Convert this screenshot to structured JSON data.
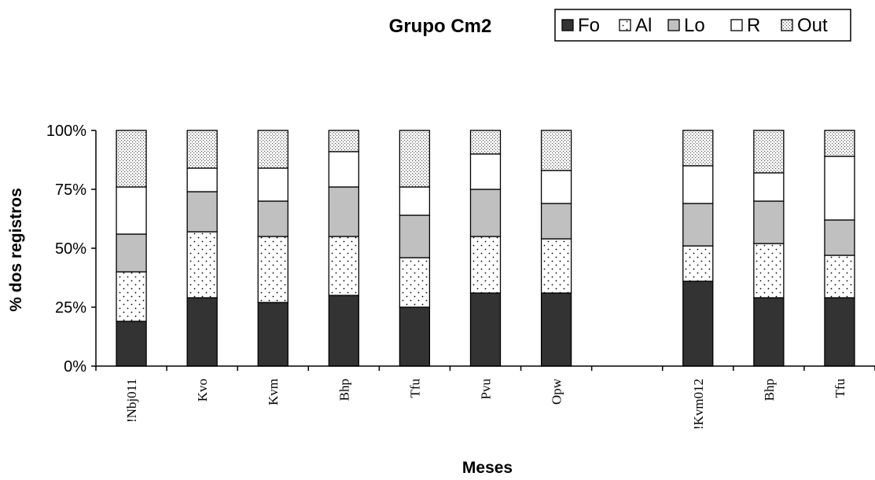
{
  "chart_data": {
    "type": "bar",
    "stacked": true,
    "percent": true,
    "title": "Grupo Cm2",
    "xlabel": "Meses",
    "ylabel": "% dos registros",
    "ylim": [
      0,
      100
    ],
    "yticks": [
      "0%",
      "25%",
      "50%",
      "75%",
      "100%"
    ],
    "ytick_values": [
      0,
      25,
      50,
      75,
      100
    ],
    "categories": [
      "!Nbj011",
      "Kvo",
      "Kvm",
      "Bhp",
      "Tfu",
      "Pvu",
      "Opw",
      "",
      "!Kvm012",
      "Bhp",
      "Tfu"
    ],
    "legend_position": "top-right",
    "series": [
      {
        "name": "Fo",
        "pattern": "solid-dark",
        "values": [
          19,
          29,
          27,
          30,
          25,
          31,
          31,
          null,
          36,
          29,
          29
        ]
      },
      {
        "name": "Al",
        "pattern": "dots",
        "values": [
          21,
          28,
          28,
          25,
          21,
          24,
          23,
          null,
          15,
          23,
          18
        ]
      },
      {
        "name": "Lo",
        "pattern": "gray",
        "values": [
          16,
          17,
          15,
          21,
          18,
          20,
          15,
          null,
          18,
          18,
          15
        ]
      },
      {
        "name": "R",
        "pattern": "white",
        "values": [
          20,
          10,
          14,
          15,
          12,
          15,
          14,
          null,
          16,
          12,
          27
        ]
      },
      {
        "name": "Out",
        "pattern": "dense-dots",
        "values": [
          24,
          16,
          16,
          9,
          24,
          10,
          17,
          null,
          15,
          18,
          11
        ]
      }
    ],
    "colors": {
      "Fo": "#333333",
      "Al": "#ffffff",
      "Lo": "#c0c0c0",
      "R": "#ffffff",
      "Out": "#e0e0e0"
    }
  }
}
